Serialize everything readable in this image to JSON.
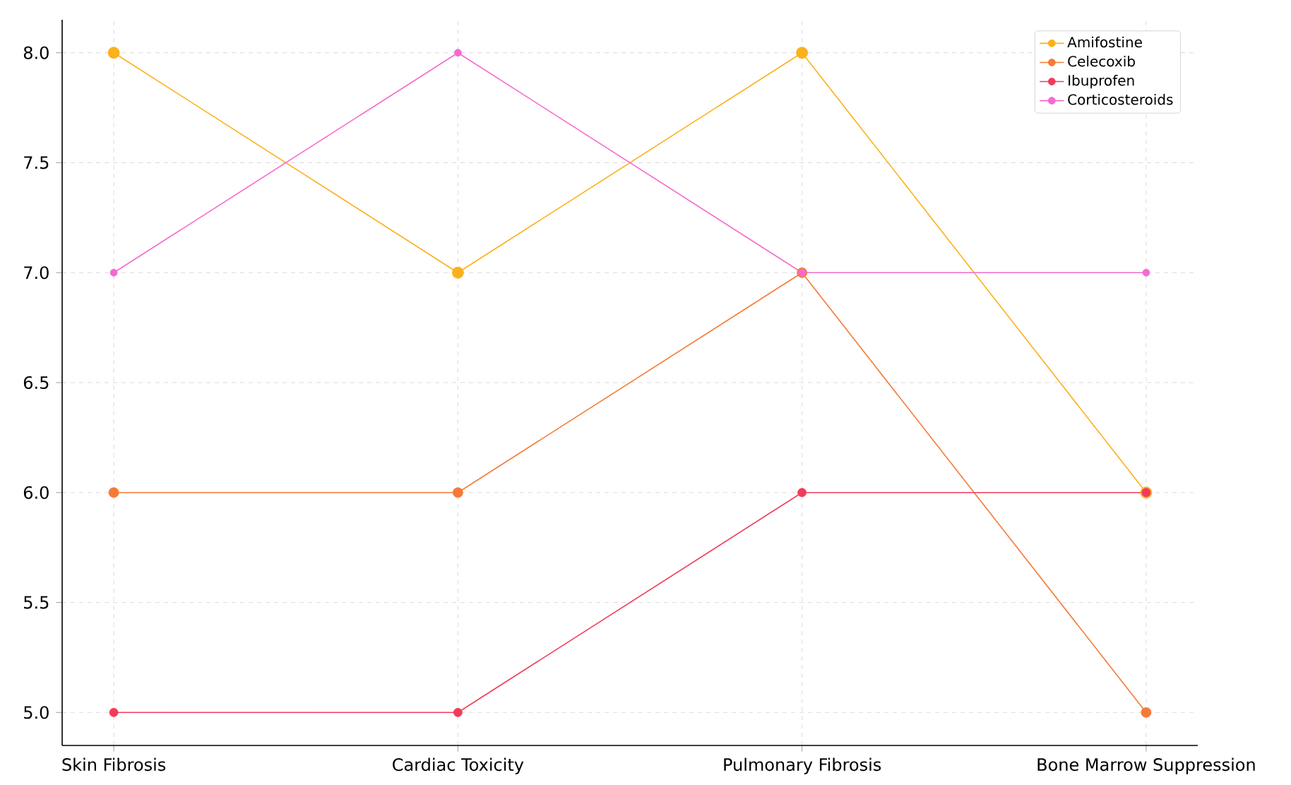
{
  "chart_data": {
    "type": "line",
    "categories": [
      "Skin Fibrosis",
      "Cardiac Toxicity",
      "Pulmonary Fibrosis",
      "Bone Marrow Suppression"
    ],
    "series": [
      {
        "name": "Amifostine",
        "color": "#fbb11b",
        "values": [
          8,
          7,
          8,
          6
        ]
      },
      {
        "name": "Celecoxib",
        "color": "#f57a38",
        "values": [
          6,
          6,
          7,
          5
        ]
      },
      {
        "name": "Ibuprofen",
        "color": "#f03c5a",
        "values": [
          5,
          5,
          6,
          6
        ]
      },
      {
        "name": "Corticosteroids",
        "color": "#f66ad0",
        "values": [
          7,
          8,
          7,
          7
        ]
      }
    ],
    "ylim": [
      4.85,
      8.15
    ],
    "yticks": [
      {
        "value": 5,
        "label": "5.0"
      },
      {
        "value": 5.5,
        "label": "5.5"
      },
      {
        "value": 6,
        "label": "6.0"
      },
      {
        "value": 6.5,
        "label": "6.5"
      },
      {
        "value": 7,
        "label": "7.0"
      },
      {
        "value": 7.5,
        "label": "7.5"
      },
      {
        "value": 8,
        "label": "8.0"
      }
    ],
    "grid": true,
    "legend": "top right",
    "marker": "circle",
    "line_style": "solid"
  }
}
